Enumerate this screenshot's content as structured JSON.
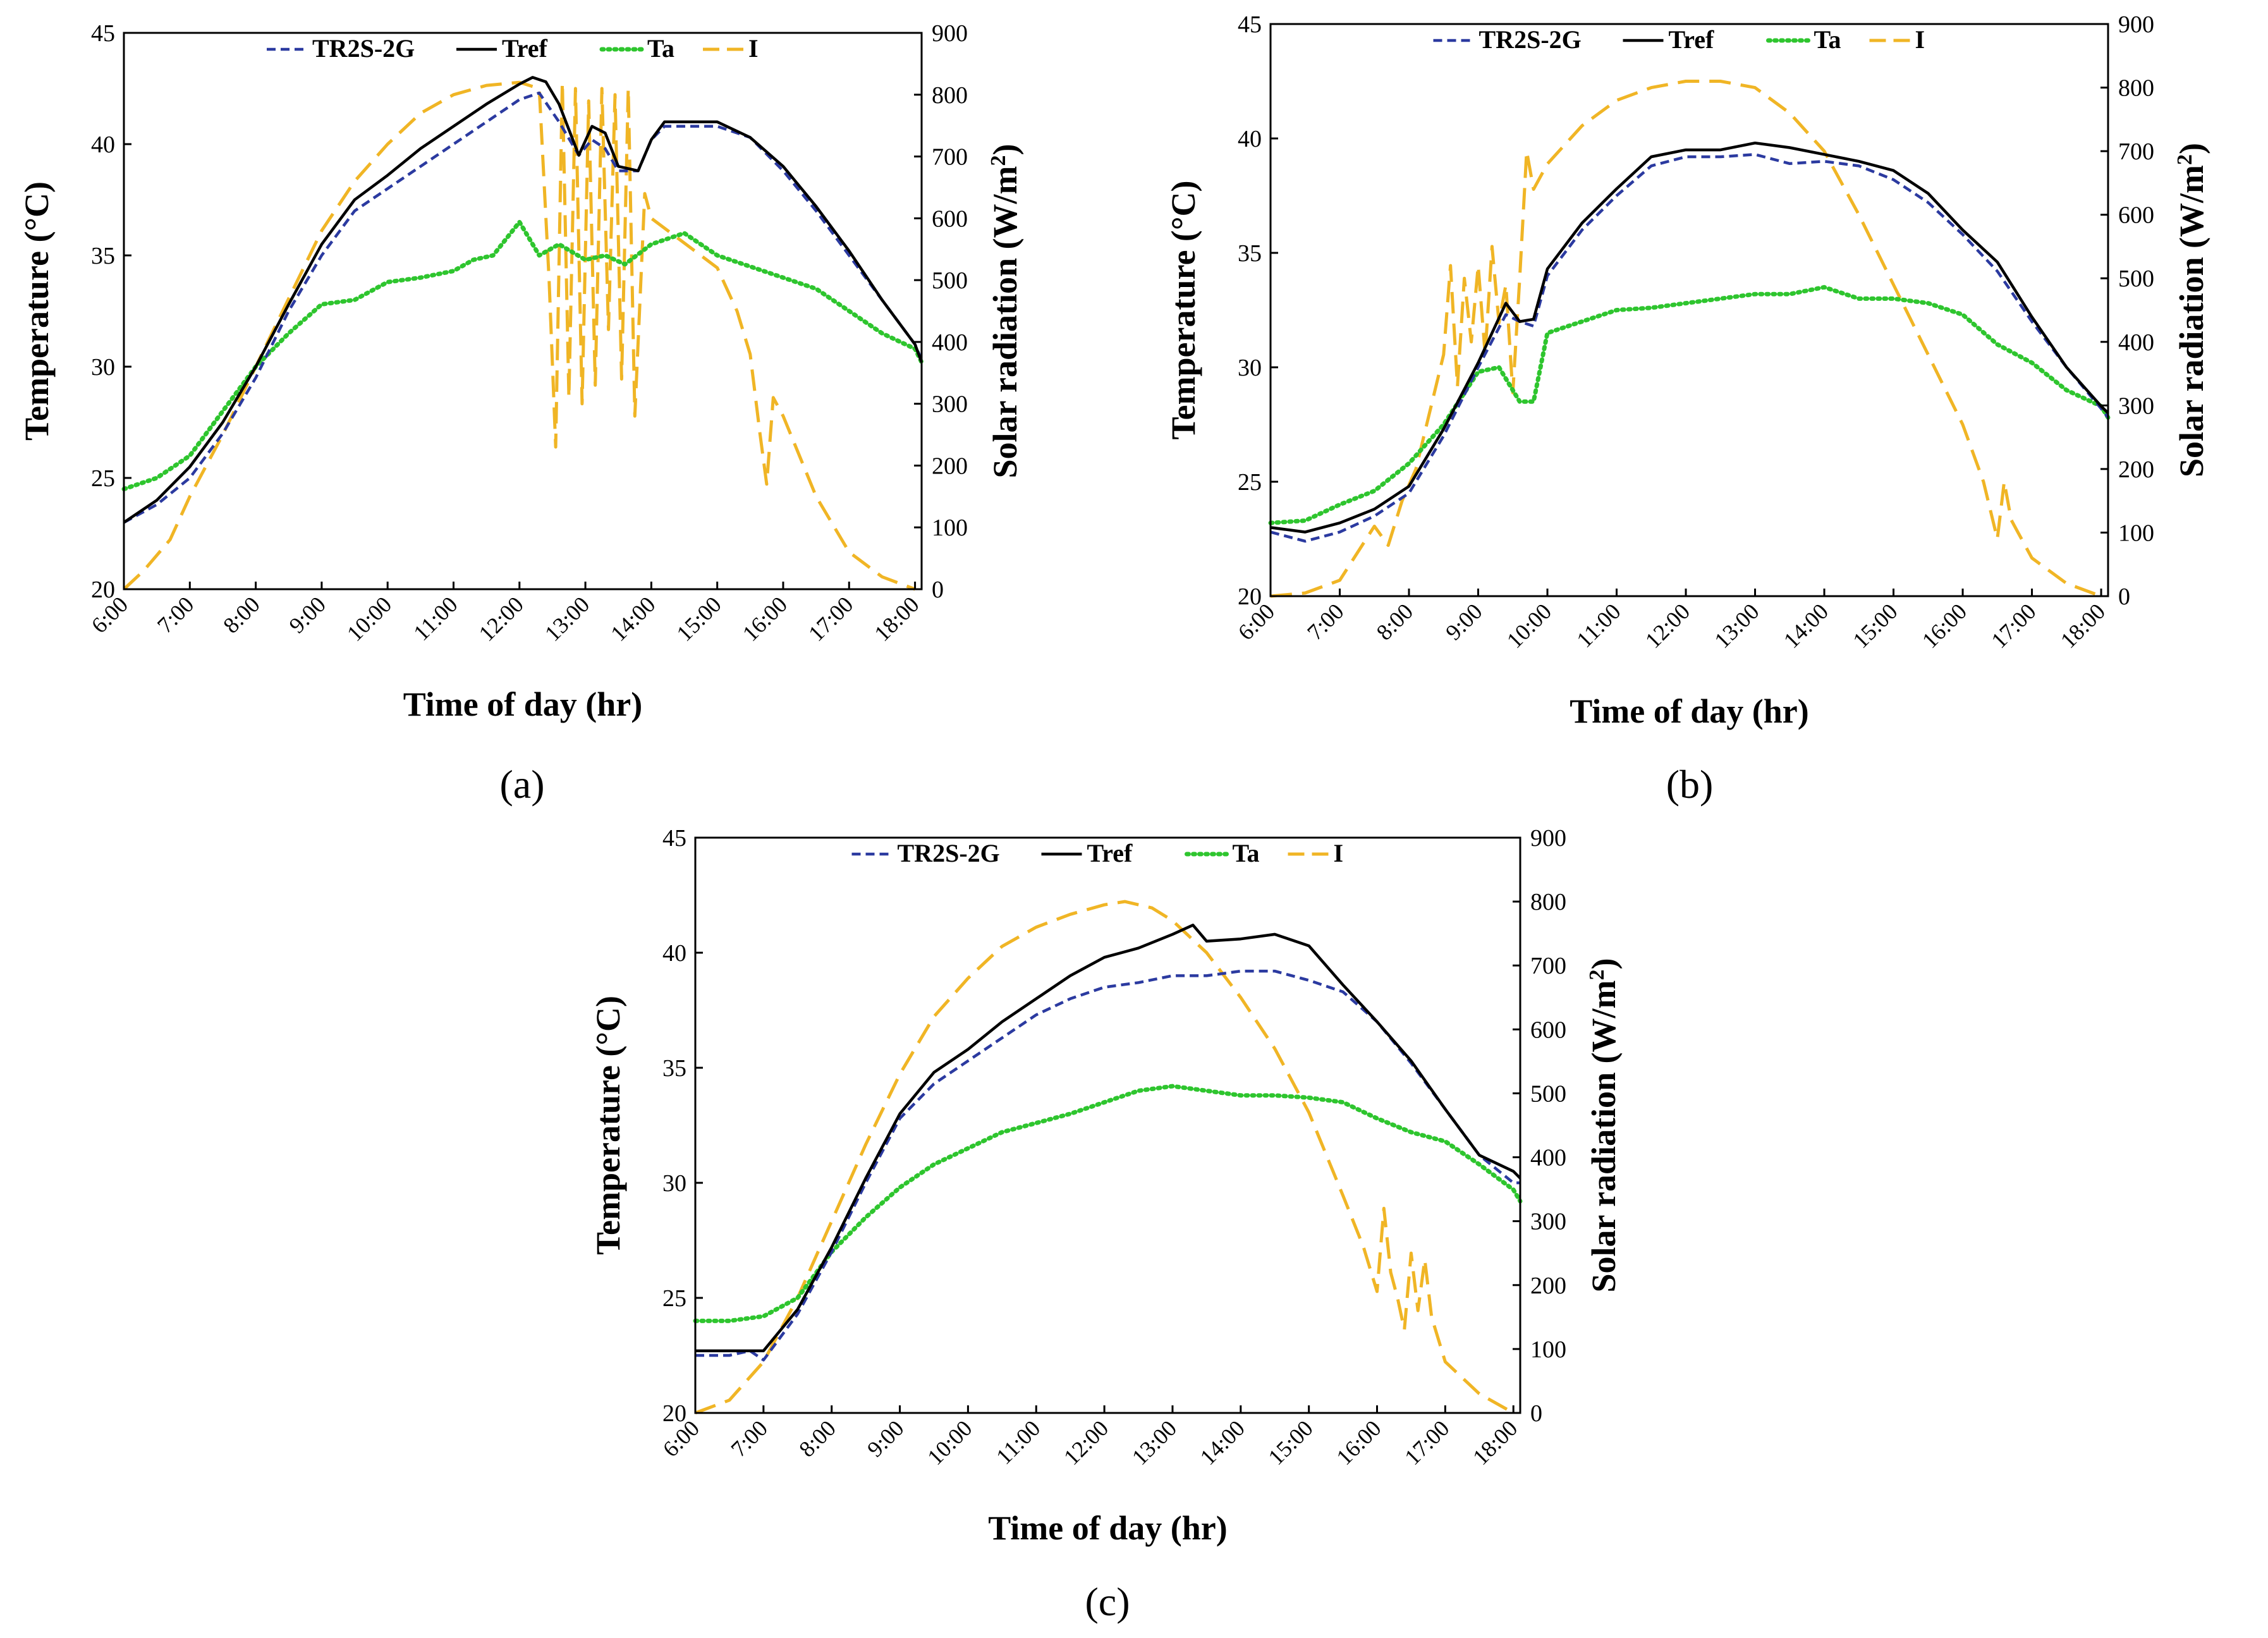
{
  "figure": {
    "panel_labels": [
      "(a)",
      "(b)",
      "(c)"
    ]
  },
  "legend_labels": [
    "TR2S-2G",
    "Tref",
    "Ta",
    "I"
  ],
  "colors": {
    "TR2S-2G": "#2b3aa0",
    "Tref": "#000000",
    "Ta": "#2ec52e",
    "I": "#f0b525",
    "axis": "#000000",
    "background": "#ffffff"
  },
  "chart_data": [
    {
      "id": "a",
      "type": "line",
      "title": "",
      "panel_label": "(a)",
      "xlabel": "Time of day (hr)",
      "ylabel": "Temperature (°C)",
      "y2label_prefix": "Solar radiation (W/m",
      "y2label_sup": "2",
      "y2label_suffix": ")",
      "xlim": [
        6,
        18.1
      ],
      "ylim": [
        20,
        45
      ],
      "y2lim": [
        0,
        900
      ],
      "xticks": [
        6,
        7,
        8,
        9,
        10,
        11,
        12,
        13,
        14,
        15,
        16,
        17,
        18
      ],
      "xtick_labels": [
        "6:00",
        "7:00",
        "8:00",
        "9:00",
        "10:00",
        "11:00",
        "12:00",
        "13:00",
        "14:00",
        "15:00",
        "16:00",
        "17:00",
        "18:00"
      ],
      "yticks": [
        20,
        25,
        30,
        35,
        40,
        45
      ],
      "y2ticks": [
        0,
        100,
        200,
        300,
        400,
        500,
        600,
        700,
        800,
        900
      ],
      "series": [
        {
          "name": "TR2S-2G",
          "axis": "left",
          "style": "dash",
          "x": [
            6,
            6.5,
            7,
            7.5,
            8,
            8.5,
            9,
            9.5,
            10,
            10.5,
            11,
            11.5,
            12,
            12.3,
            12.6,
            12.9,
            13.1,
            13.3,
            13.5,
            13.8,
            14,
            14.2,
            14.5,
            15,
            15.5,
            16,
            16.5,
            17,
            17.5,
            18,
            18.1
          ],
          "y": [
            23,
            23.8,
            25,
            27,
            29.5,
            32.5,
            35,
            37,
            38,
            39,
            40,
            41,
            42,
            42.3,
            41,
            39.5,
            40.2,
            39.8,
            38.8,
            38.8,
            40.2,
            40.8,
            40.8,
            40.8,
            40.3,
            38.8,
            37,
            35,
            33,
            31,
            30.3
          ]
        },
        {
          "name": "Tref",
          "axis": "left",
          "style": "solid",
          "x": [
            6,
            6.5,
            7,
            7.5,
            8,
            8.5,
            9,
            9.5,
            10,
            10.5,
            11,
            11.5,
            12,
            12.2,
            12.4,
            12.6,
            12.9,
            13.1,
            13.3,
            13.5,
            13.8,
            14,
            14.2,
            14.5,
            15,
            15.5,
            16,
            16.5,
            17,
            17.5,
            18,
            18.1
          ],
          "y": [
            23,
            24,
            25.5,
            27.5,
            30,
            32.8,
            35.5,
            37.5,
            38.6,
            39.8,
            40.8,
            41.8,
            42.7,
            43,
            42.8,
            41.8,
            39.5,
            40.8,
            40.5,
            39,
            38.8,
            40.2,
            41,
            41,
            41,
            40.3,
            39,
            37.2,
            35.2,
            33,
            31,
            30.2
          ]
        },
        {
          "name": "Ta",
          "axis": "left",
          "style": "dot",
          "x": [
            6,
            6.5,
            7,
            7.5,
            8,
            8.5,
            9,
            9.5,
            10,
            10.5,
            11,
            11.3,
            11.6,
            12,
            12.3,
            12.6,
            13,
            13.3,
            13.6,
            14,
            14.5,
            15,
            15.5,
            16,
            16.5,
            17,
            17.5,
            18,
            18.1
          ],
          "y": [
            24.5,
            25,
            26,
            28,
            30,
            31.5,
            32.8,
            33,
            33.8,
            34,
            34.3,
            34.8,
            35,
            36.5,
            35,
            35.5,
            34.8,
            35,
            34.6,
            35.5,
            36,
            35,
            34.5,
            34,
            33.5,
            32.5,
            31.5,
            30.8,
            30.2
          ]
        },
        {
          "name": "I",
          "axis": "right",
          "style": "longdash",
          "x": [
            6,
            6.3,
            6.7,
            7,
            7.5,
            8,
            8.5,
            9,
            9.5,
            10,
            10.5,
            11,
            11.5,
            12,
            12.3,
            12.45,
            12.55,
            12.65,
            12.75,
            12.85,
            12.95,
            13.05,
            13.15,
            13.25,
            13.35,
            13.45,
            13.55,
            13.65,
            13.75,
            13.9,
            14,
            14.5,
            15,
            15.3,
            15.5,
            15.65,
            15.75,
            15.85,
            16,
            16.5,
            17,
            17.5,
            18
          ],
          "y": [
            0,
            30,
            80,
            150,
            250,
            360,
            470,
            580,
            660,
            720,
            770,
            800,
            815,
            820,
            810,
            500,
            230,
            820,
            310,
            810,
            300,
            790,
            330,
            810,
            420,
            800,
            340,
            810,
            280,
            640,
            600,
            560,
            520,
            450,
            380,
            250,
            170,
            310,
            280,
            150,
            60,
            20,
            0
          ]
        }
      ]
    },
    {
      "id": "b",
      "type": "line",
      "title": "",
      "panel_label": "(b)",
      "xlabel": "Time of day (hr)",
      "ylabel": "Temperature (°C)",
      "y2label_prefix": "Solar radiation (W/m",
      "y2label_sup": "2",
      "y2label_suffix": ")",
      "xlim": [
        6,
        18.1
      ],
      "ylim": [
        20,
        45
      ],
      "y2lim": [
        0,
        900
      ],
      "xticks": [
        6,
        7,
        8,
        9,
        10,
        11,
        12,
        13,
        14,
        15,
        16,
        17,
        18
      ],
      "xtick_labels": [
        "6:00",
        "7:00",
        "8:00",
        "9:00",
        "10:00",
        "11:00",
        "12:00",
        "13:00",
        "14:00",
        "15:00",
        "16:00",
        "17:00",
        "18:00"
      ],
      "yticks": [
        20,
        25,
        30,
        35,
        40,
        45
      ],
      "y2ticks": [
        0,
        100,
        200,
        300,
        400,
        500,
        600,
        700,
        800,
        900
      ],
      "series": [
        {
          "name": "TR2S-2G",
          "axis": "left",
          "style": "dash",
          "x": [
            6,
            6.5,
            7,
            7.5,
            8,
            8.5,
            9,
            9.4,
            9.6,
            9.8,
            10,
            10.5,
            11,
            11.5,
            12,
            12.5,
            13,
            13.5,
            14,
            14.5,
            15,
            15.5,
            16,
            16.5,
            17,
            17.5,
            18,
            18.1
          ],
          "y": [
            22.8,
            22.4,
            22.8,
            23.5,
            24.5,
            27,
            30,
            32.3,
            32,
            31.8,
            34,
            36,
            37.5,
            38.8,
            39.2,
            39.2,
            39.3,
            38.9,
            39,
            38.8,
            38.2,
            37.2,
            35.8,
            34.2,
            32,
            30,
            28.2,
            27.8
          ]
        },
        {
          "name": "Tref",
          "axis": "left",
          "style": "solid",
          "x": [
            6,
            6.5,
            7,
            7.5,
            8,
            8.5,
            9,
            9.4,
            9.6,
            9.8,
            10,
            10.5,
            11,
            11.5,
            12,
            12.5,
            13,
            13.5,
            14,
            14.5,
            15,
            15.5,
            16,
            16.5,
            17,
            17.5,
            18,
            18.1
          ],
          "y": [
            23,
            22.8,
            23.2,
            23.8,
            24.8,
            27.3,
            30.2,
            32.8,
            32,
            32.1,
            34.3,
            36.3,
            37.8,
            39.2,
            39.5,
            39.5,
            39.8,
            39.6,
            39.3,
            39,
            38.6,
            37.6,
            36,
            34.6,
            32.2,
            30,
            28.3,
            28
          ]
        },
        {
          "name": "Ta",
          "axis": "left",
          "style": "dot",
          "x": [
            6,
            6.5,
            7,
            7.5,
            8,
            8.5,
            9,
            9.3,
            9.6,
            9.8,
            10,
            10.5,
            11,
            11.5,
            12,
            12.5,
            13,
            13.5,
            14,
            14.5,
            15,
            15.5,
            16,
            16.5,
            17,
            17.5,
            18,
            18.1
          ],
          "y": [
            23.2,
            23.3,
            24,
            24.6,
            25.8,
            27.5,
            29.8,
            30,
            28.5,
            28.5,
            31.5,
            32,
            32.5,
            32.6,
            32.8,
            33,
            33.2,
            33.2,
            33.5,
            33,
            33,
            32.8,
            32.3,
            31,
            30.2,
            29,
            28.3,
            27.8
          ]
        },
        {
          "name": "I",
          "axis": "right",
          "style": "longdash",
          "x": [
            6,
            6.5,
            7,
            7.5,
            7.7,
            7.9,
            8.1,
            8.3,
            8.5,
            8.6,
            8.7,
            8.8,
            8.9,
            9,
            9.1,
            9.2,
            9.3,
            9.4,
            9.5,
            9.6,
            9.7,
            9.8,
            10,
            10.5,
            11,
            11.5,
            12,
            12.5,
            13,
            13.5,
            14,
            14.5,
            15,
            15.5,
            16,
            16.3,
            16.5,
            16.6,
            16.7,
            16.8,
            17,
            17.5,
            18
          ],
          "y": [
            0,
            5,
            25,
            110,
            80,
            150,
            200,
            290,
            380,
            520,
            330,
            500,
            400,
            520,
            380,
            550,
            430,
            490,
            320,
            500,
            700,
            640,
            680,
            740,
            780,
            800,
            810,
            810,
            800,
            760,
            700,
            600,
            490,
            380,
            270,
            180,
            90,
            180,
            120,
            100,
            60,
            20,
            0
          ]
        }
      ]
    },
    {
      "id": "c",
      "type": "line",
      "title": "",
      "panel_label": "(c)",
      "xlabel": "Time of day (hr)",
      "ylabel": "Temperature (°C)",
      "y2label_prefix": "Solar radiation (W/m",
      "y2label_sup": "2",
      "y2label_suffix": ")",
      "xlim": [
        6,
        18.1
      ],
      "ylim": [
        20,
        45
      ],
      "y2lim": [
        0,
        900
      ],
      "xticks": [
        6,
        7,
        8,
        9,
        10,
        11,
        12,
        13,
        14,
        15,
        16,
        17,
        18
      ],
      "xtick_labels": [
        "6:00",
        "7:00",
        "8:00",
        "9:00",
        "10:00",
        "11:00",
        "12:00",
        "13:00",
        "14:00",
        "15:00",
        "16:00",
        "17:00",
        "18:00"
      ],
      "yticks": [
        20,
        25,
        30,
        35,
        40,
        45
      ],
      "y2ticks": [
        0,
        100,
        200,
        300,
        400,
        500,
        600,
        700,
        800,
        900
      ],
      "series": [
        {
          "name": "TR2S-2G",
          "axis": "left",
          "style": "dash",
          "x": [
            6,
            6.5,
            6.8,
            7,
            7.5,
            8,
            8.5,
            9,
            9.5,
            10,
            10.5,
            11,
            11.5,
            12,
            12.5,
            13,
            13.5,
            14,
            14.5,
            15,
            15.5,
            16,
            16.5,
            17,
            17.5,
            18,
            18.1
          ],
          "y": [
            22.5,
            22.5,
            22.7,
            22.3,
            24.3,
            27,
            30,
            32.8,
            34.3,
            35.3,
            36.3,
            37.3,
            38,
            38.5,
            38.7,
            39,
            39,
            39.2,
            39.2,
            38.8,
            38.3,
            37,
            35.2,
            33.2,
            31.2,
            30,
            30
          ]
        },
        {
          "name": "Tref",
          "axis": "left",
          "style": "solid",
          "x": [
            6,
            6.5,
            6.8,
            7,
            7.5,
            8,
            8.5,
            9,
            9.5,
            10,
            10.5,
            11,
            11.5,
            12,
            12.5,
            13,
            13.3,
            13.5,
            14,
            14.5,
            15,
            15.5,
            16,
            16.5,
            17,
            17.5,
            18,
            18.1
          ],
          "y": [
            22.7,
            22.7,
            22.7,
            22.7,
            24.5,
            27.2,
            30.2,
            33,
            34.8,
            35.8,
            37,
            38,
            39,
            39.8,
            40.2,
            40.8,
            41.2,
            40.5,
            40.6,
            40.8,
            40.3,
            38.6,
            37,
            35.3,
            33.2,
            31.2,
            30.5,
            30.2
          ]
        },
        {
          "name": "Ta",
          "axis": "left",
          "style": "dot",
          "x": [
            6,
            6.5,
            7,
            7.5,
            8,
            8.5,
            9,
            9.5,
            10,
            10.5,
            11,
            11.5,
            12,
            12.5,
            13,
            13.5,
            14,
            14.5,
            15,
            15.5,
            16,
            16.5,
            17,
            17.5,
            18,
            18.1
          ],
          "y": [
            24,
            24,
            24.2,
            25,
            27,
            28.5,
            29.8,
            30.8,
            31.5,
            32.2,
            32.6,
            33,
            33.5,
            34,
            34.2,
            34,
            33.8,
            33.8,
            33.7,
            33.5,
            32.8,
            32.2,
            31.8,
            30.8,
            29.7,
            29.2
          ]
        },
        {
          "name": "I",
          "axis": "right",
          "style": "longdash",
          "x": [
            6,
            6.5,
            7,
            7.5,
            8,
            8.5,
            9,
            9.5,
            10,
            10.5,
            11,
            11.5,
            12,
            12.3,
            12.7,
            13,
            13.5,
            14,
            14.5,
            15,
            15.5,
            15.8,
            16,
            16.1,
            16.2,
            16.3,
            16.4,
            16.5,
            16.6,
            16.7,
            16.8,
            17,
            17.5,
            18
          ],
          "y": [
            0,
            20,
            80,
            180,
            300,
            420,
            530,
            620,
            680,
            730,
            760,
            780,
            795,
            800,
            790,
            770,
            720,
            650,
            570,
            470,
            340,
            260,
            190,
            320,
            220,
            180,
            130,
            250,
            160,
            240,
            150,
            80,
            30,
            0
          ]
        }
      ]
    }
  ]
}
